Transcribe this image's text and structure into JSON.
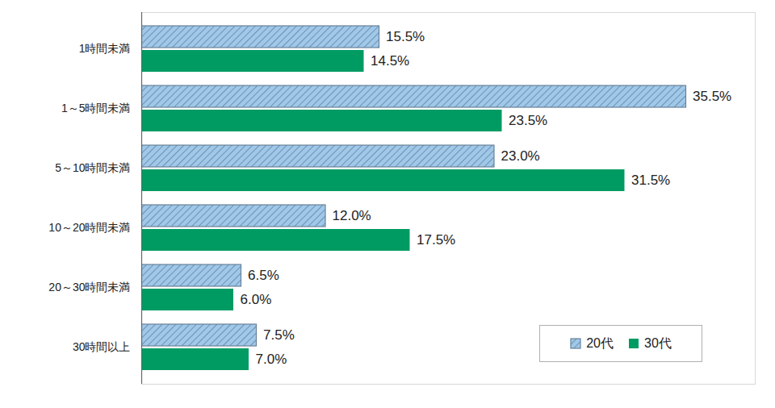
{
  "chart_data": {
    "type": "bar",
    "orientation": "horizontal",
    "categories": [
      "1時間未満",
      "1～5時間未満",
      "5～10時間未満",
      "10～20時間未満",
      "20～30時間未満",
      "30時間以上"
    ],
    "series": [
      {
        "name": "20代",
        "color": "#9fc8ea",
        "values": [
          15.5,
          35.5,
          23.0,
          12.0,
          6.5,
          7.5
        ],
        "value_labels": [
          "15.5%",
          "35.5%",
          "23.0%",
          "12.0%",
          "6.5%",
          "7.5%"
        ]
      },
      {
        "name": "30代",
        "color": "#009b63",
        "values": [
          14.5,
          23.5,
          31.5,
          17.5,
          6.0,
          7.0
        ],
        "value_labels": [
          "14.5%",
          "23.5%",
          "31.5%",
          "17.5%",
          "6.0%",
          "7.0%"
        ]
      }
    ],
    "xlim": [
      0,
      40
    ],
    "data_labels": true,
    "tick_labels": "y",
    "legend": "lower right",
    "grid": false
  }
}
